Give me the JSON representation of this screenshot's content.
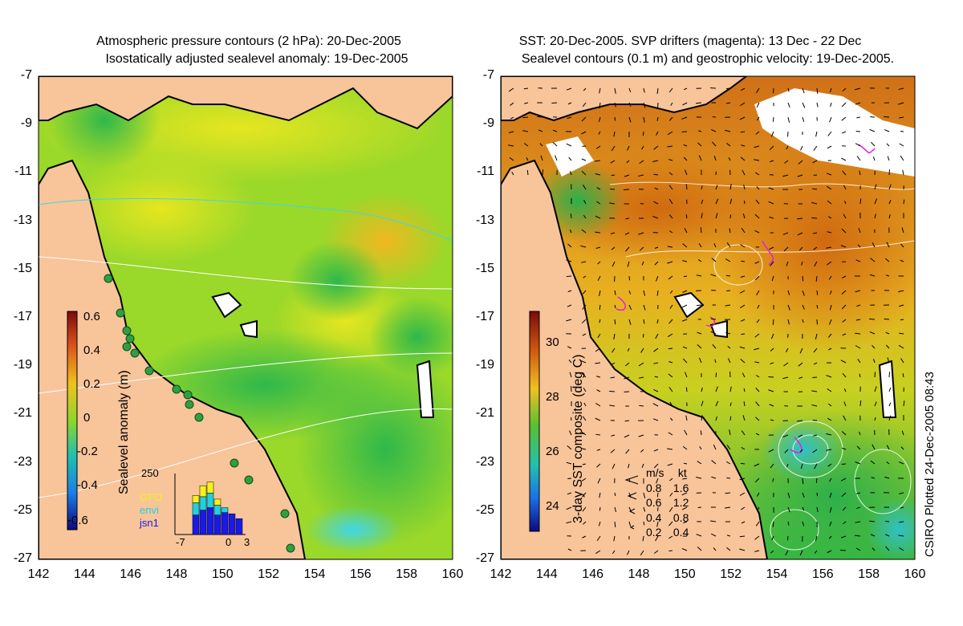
{
  "left_panel": {
    "title_line1": "Atmospheric pressure contours (2 hPa): 20-Dec-2005",
    "title_line2": "Isostatically adjusted sealevel anomaly: 19-Dec-2005",
    "colorbar_label": "Sealevel anomaly (m)",
    "colorbar_ticks": [
      "0.6",
      "0.4",
      "0.2",
      "0",
      "-0.2",
      "-0.4",
      "-0.6"
    ],
    "inset": {
      "ymax_label": "250",
      "legend": [
        {
          "name": "GFO",
          "color": "#f5f21a"
        },
        {
          "name": "envi",
          "color": "#22d0e0"
        },
        {
          "name": "jsn1",
          "color": "#1a1ae6"
        }
      ],
      "x_ticks": [
        "-7",
        "0",
        "3"
      ],
      "bars": [
        {
          "GFO": 0,
          "envi": 0,
          "jsn1": 0
        },
        {
          "GFO": 0,
          "envi": 0,
          "jsn1": 0
        },
        {
          "GFO": 30,
          "envi": 50,
          "jsn1": 80
        },
        {
          "GFO": 45,
          "envi": 55,
          "jsn1": 100
        },
        {
          "GFO": 45,
          "envi": 60,
          "jsn1": 110
        },
        {
          "GFO": 25,
          "envi": 40,
          "jsn1": 80
        },
        {
          "GFO": 0,
          "envi": 20,
          "jsn1": 90
        },
        {
          "GFO": 0,
          "envi": 0,
          "jsn1": 85
        },
        {
          "GFO": 0,
          "envi": 0,
          "jsn1": 65
        }
      ]
    }
  },
  "right_panel": {
    "title_line1": "SST: 20-Dec-2005. SVP drifters (magenta): 13 Dec - 22 Dec",
    "title_line2": "Sealevel contours (0.1 m) and geostrophic velocity: 19-Dec-2005.",
    "colorbar_label": "3-day SST composite (deg C)",
    "colorbar_ticks": [
      "30",
      "28",
      "26",
      "24"
    ],
    "speed_legend": {
      "header_ms": "m/s",
      "header_kt": "kt",
      "rows": [
        {
          "ms": "0.8",
          "kt": "1.6"
        },
        {
          "ms": "0.6",
          "kt": "1.2"
        },
        {
          "ms": "0.4",
          "kt": "0.8"
        },
        {
          "ms": "0.2",
          "kt": "0.4"
        }
      ]
    }
  },
  "axes": {
    "y_ticks": [
      "-7",
      "-9",
      "-11",
      "-13",
      "-15",
      "-17",
      "-19",
      "-21",
      "-23",
      "-25",
      "-27"
    ],
    "x_ticks": [
      "142",
      "144",
      "146",
      "148",
      "150",
      "152",
      "154",
      "156",
      "158",
      "160"
    ]
  },
  "credit": "CSIRO Plotted 24-Dec-2005 08:43",
  "colors": {
    "land": "#f8c49a",
    "sla_ocean": "#7ed321",
    "sst_warm": "#e08a1a",
    "sst_cool": "#3fbf3f",
    "drifters": "#e020e0"
  }
}
